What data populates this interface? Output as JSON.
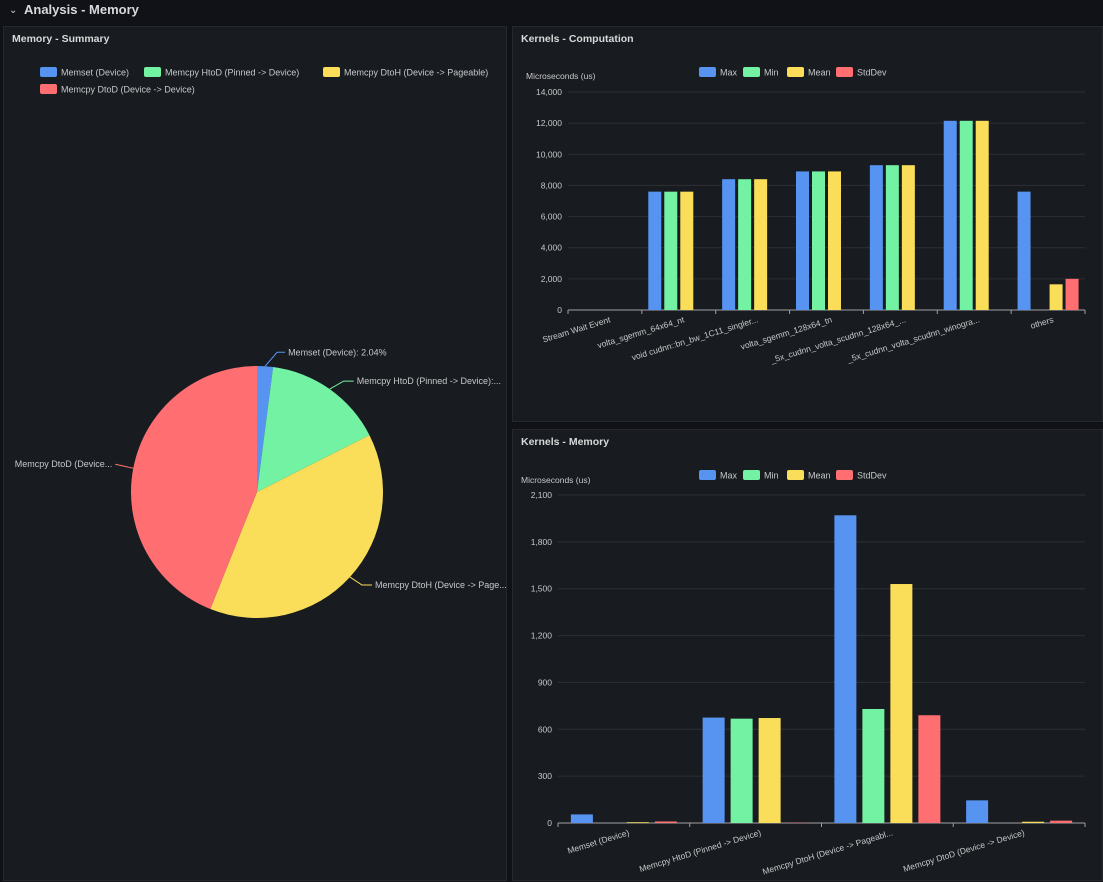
{
  "row": {
    "title": "Analysis - Memory",
    "collapse_icon": "chevron-down-icon"
  },
  "panels": {
    "summary": {
      "title": "Memory - Summary"
    },
    "computation": {
      "title": "Kernels - Computation"
    },
    "memory": {
      "title": "Kernels - Memory"
    }
  },
  "colors": {
    "max": "#5794f2",
    "min": "#73f2a3",
    "mean": "#fade5a",
    "stddev": "#ff6f72",
    "grid": "#2c2f35",
    "axis": "#9fa1a6",
    "text": "#c7c8ca"
  },
  "chart_data": [
    {
      "id": "memory-summary",
      "type": "pie",
      "title": "Memory - Summary",
      "legend": [
        "Memset (Device)",
        "Memcpy HtoD (Pinned -> Device)",
        "Memcpy DtoH (Device -> Pageable)",
        "Memcpy DtoD (Device -> Device)"
      ],
      "values": [
        2.04,
        15.5,
        38.5,
        43.96
      ],
      "slice_labels": [
        "Memset (Device): 2.04%",
        "Memcpy HtoD (Pinned -> Device):...",
        "Memcpy DtoH (Device -> Page...",
        "Memcpy DtoD (Device..."
      ]
    },
    {
      "id": "kernels-computation",
      "type": "bar",
      "title": "Kernels - Computation",
      "ylabel": "Microseconds (us)",
      "ylim": [
        0,
        14000
      ],
      "yticks": [
        0,
        2000,
        4000,
        6000,
        8000,
        10000,
        12000,
        14000
      ],
      "ytick_labels": [
        "0",
        "2,000",
        "4,000",
        "6,000",
        "8,000",
        "10,000",
        "12,000",
        "14,000"
      ],
      "categories": [
        "Stream Wait Event",
        "volta_sgemm_64x64_nt",
        "void cudnn::bn_bw_1C11_singler...",
        "volta_sgemm_128x64_tn",
        "_5x_cudnn_volta_scudnn_128x64_...",
        "_5x_cudnn_volta_scudnn_winogra...",
        "others"
      ],
      "series": [
        {
          "name": "Max",
          "values": [
            0,
            7600,
            8400,
            8900,
            9300,
            12150,
            7600
          ]
        },
        {
          "name": "Min",
          "values": [
            0,
            7600,
            8400,
            8900,
            9300,
            12150,
            0
          ]
        },
        {
          "name": "Mean",
          "values": [
            0,
            7600,
            8400,
            8900,
            9300,
            12150,
            1650
          ]
        },
        {
          "name": "StdDev",
          "values": [
            0,
            0,
            0,
            0,
            0,
            0,
            2000
          ]
        }
      ]
    },
    {
      "id": "kernels-memory",
      "type": "bar",
      "title": "Kernels - Memory",
      "ylabel": "Microseconds (us)",
      "ylim": [
        0,
        2100
      ],
      "yticks": [
        0,
        300,
        600,
        900,
        1200,
        1500,
        1800,
        2100
      ],
      "ytick_labels": [
        "0",
        "300",
        "600",
        "900",
        "1,200",
        "1,500",
        "1,800",
        "2,100"
      ],
      "categories": [
        "Memset (Device)",
        "Memcpy HtoD (Pinned -> Device)",
        "Memcpy DtoH (Device -> Pageabl...",
        "Memcpy DtoD (Device -> Device)"
      ],
      "series": [
        {
          "name": "Max",
          "values": [
            55,
            675,
            1970,
            145
          ]
        },
        {
          "name": "Min",
          "values": [
            0,
            668,
            730,
            0
          ]
        },
        {
          "name": "Mean",
          "values": [
            5,
            672,
            1530,
            8
          ]
        },
        {
          "name": "StdDev",
          "values": [
            10,
            2,
            690,
            15
          ]
        }
      ]
    }
  ]
}
